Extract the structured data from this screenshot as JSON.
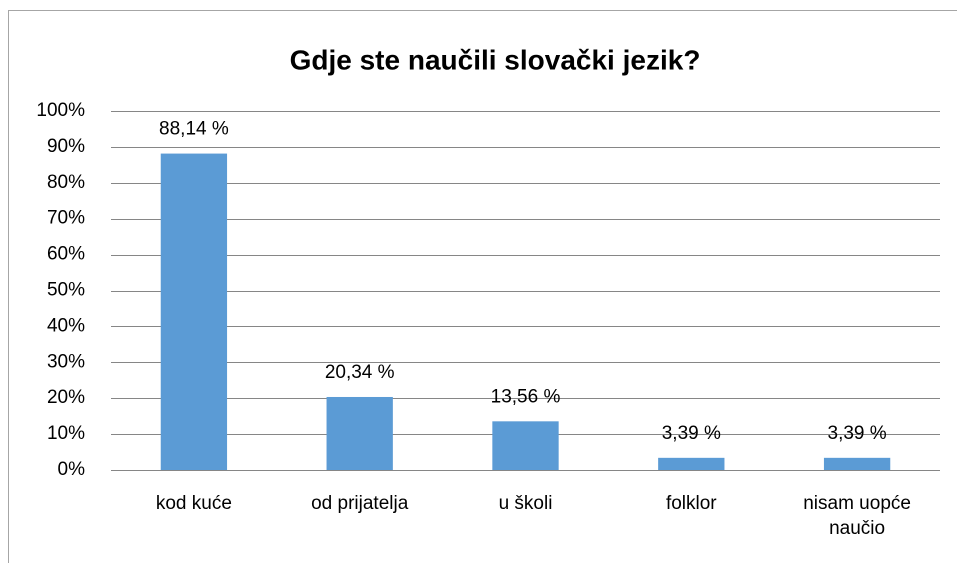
{
  "chart_data": {
    "type": "bar",
    "title": "Gdje ste naučili slovački jezik?",
    "categories": [
      "kod kuće",
      "od prijatelja",
      "u školi",
      "folklor",
      "nisam uopće naučio"
    ],
    "values": [
      88.14,
      20.34,
      13.56,
      3.39,
      3.39
    ],
    "value_labels": [
      "88,14 %",
      "20,34 %",
      "13,56 %",
      "3,39 %",
      "3,39 %"
    ],
    "color": "#5b9bd5",
    "ylim": [
      0,
      100
    ],
    "yticks": [
      {
        "value": 0,
        "label": "0%"
      },
      {
        "value": 10,
        "label": "10%"
      },
      {
        "value": 20,
        "label": "20%"
      },
      {
        "value": 30,
        "label": "30%"
      },
      {
        "value": 40,
        "label": "40%"
      },
      {
        "value": 50,
        "label": "50%"
      },
      {
        "value": 60,
        "label": "60%"
      },
      {
        "value": 70,
        "label": "70%"
      },
      {
        "value": 80,
        "label": "80%"
      },
      {
        "value": 90,
        "label": "90%"
      },
      {
        "value": 100,
        "label": "100%"
      }
    ],
    "grid": true
  }
}
